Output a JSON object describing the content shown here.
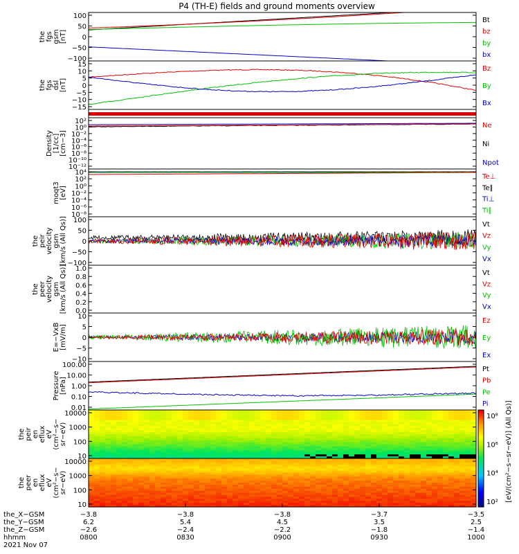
{
  "title": "P4 (TH-E) fields and ground moments overview",
  "colors": {
    "black": "#000000",
    "red": "#e00000",
    "green": "#00c000",
    "blue": "#0000c8"
  },
  "panels": [
    {
      "id": "fgs_gsm",
      "ylabel": [
        "the",
        "fgs",
        "gsm",
        "[nT]"
      ],
      "ticks": [
        "100",
        "50",
        "0",
        "−50",
        "−100"
      ],
      "ylim": [
        -100,
        100
      ],
      "legend": [
        {
          "t": "Bt",
          "c": "black"
        },
        {
          "t": "bz",
          "c": "red"
        },
        {
          "t": "by",
          "c": "green"
        },
        {
          "t": "bx",
          "c": "blue"
        }
      ]
    },
    {
      "id": "fgs_dsl",
      "ylabel": [
        "the",
        "fgs",
        "dsl",
        "[nT]"
      ],
      "ticks": [
        "15",
        "10",
        "5",
        "0",
        "−5",
        "−10",
        "−15"
      ],
      "ylim": [
        -15,
        15
      ],
      "legend": [
        {
          "t": "Bz",
          "c": "red"
        },
        {
          "t": "By",
          "c": "green"
        },
        {
          "t": "Bx",
          "c": "blue"
        }
      ]
    },
    {
      "id": "flag",
      "ylabel": [],
      "ticks": [],
      "legend": []
    },
    {
      "id": "density",
      "ylabel": [
        "Density",
        "[1/cc]",
        "[cm−3]"
      ],
      "ticks": [
        "10²",
        "10⁰",
        "10⁻²",
        "10⁻⁴",
        "10⁻⁶",
        "10⁻⁸",
        "10⁻¹⁰",
        "10⁻¹²"
      ],
      "legend": [
        {
          "t": "Ne",
          "c": "red"
        },
        {
          "t": "Ni",
          "c": "black"
        },
        {
          "t": "Npot",
          "c": "blue"
        }
      ]
    },
    {
      "id": "temp",
      "ylabel": [
        "moqt3",
        "[eV]"
      ],
      "ticks": [
        "10⁴",
        "10²",
        "10⁰",
        "10⁻²",
        "10⁻⁴",
        "10⁻⁶",
        "10⁻⁸"
      ],
      "legend": [
        {
          "t": "Te⊥",
          "c": "red"
        },
        {
          "t": "Te∥",
          "c": "black"
        },
        {
          "t": "Ti⊥",
          "c": "blue"
        },
        {
          "t": "Ti∥",
          "c": "green"
        }
      ]
    },
    {
      "id": "peir_vel",
      "ylabel": [
        "the",
        "peir",
        "velocity",
        "gsm",
        "[km/s (All Qs)]"
      ],
      "ticks": [
        "100",
        "50",
        "0",
        "−50",
        "−100"
      ],
      "ylim": [
        -100,
        100
      ],
      "legend": [
        {
          "t": "Vt",
          "c": "black"
        },
        {
          "t": "Vz",
          "c": "red"
        },
        {
          "t": "Vy",
          "c": "green"
        },
        {
          "t": "Vx",
          "c": "blue"
        }
      ]
    },
    {
      "id": "peer_vel",
      "ylabel": [
        "the",
        "peer",
        "velocity",
        "gsm",
        "[km/s (All Qs)]"
      ],
      "ticks": [
        "1.0",
        "0.8",
        "0.6",
        "0.4",
        "0.2",
        "0.0"
      ],
      "legend": [
        {
          "t": "Vt",
          "c": "black"
        },
        {
          "t": "Vz",
          "c": "red"
        },
        {
          "t": "Vy",
          "c": "green"
        },
        {
          "t": "Vx",
          "c": "blue"
        }
      ]
    },
    {
      "id": "efield",
      "ylabel": [
        "E=−VxB",
        "[mV/m]"
      ],
      "ticks": [
        "10",
        "5",
        "0",
        "−5",
        "−10"
      ],
      "ylim": [
        -10,
        10
      ],
      "legend": [
        {
          "t": "Ez",
          "c": "red"
        },
        {
          "t": "Ey",
          "c": "green"
        },
        {
          "t": "Ex",
          "c": "blue"
        }
      ]
    },
    {
      "id": "pressure",
      "ylabel": [
        "Pressure",
        "[nPa]"
      ],
      "ticks": [
        "100.00",
        "10.00",
        "1.00",
        "0.10",
        "0.01"
      ],
      "legend": [
        {
          "t": "Pt",
          "c": "black"
        },
        {
          "t": "Pb",
          "c": "red"
        },
        {
          "t": "Pe",
          "c": "green"
        },
        {
          "t": "Pi",
          "c": "blue"
        }
      ]
    },
    {
      "id": "peir_spec",
      "ylabel": [
        "the",
        "peir",
        "en",
        "eflux",
        "eV",
        "(cm²−s−",
        "sr−eV)"
      ],
      "ticks": [
        "10000",
        "1000",
        "100",
        "10"
      ],
      "legend": []
    },
    {
      "id": "peer_spec",
      "ylabel": [
        "the",
        "peer",
        "en",
        "eflux",
        "eV",
        "(cm²−s−",
        "sr−eV)"
      ],
      "ticks": [
        "10000",
        "1000",
        "100",
        "10"
      ],
      "legend": []
    }
  ],
  "colorbar": {
    "ticks": [
      "10⁸",
      "10⁶",
      "10⁴",
      "10²"
    ],
    "label": "[eV/(cm²−s−sr−eV)] (All Qs)]"
  },
  "xaxis": {
    "rows": [
      {
        "label": "the_X−GSM",
        "values": [
          "−3.8",
          "−3.8",
          "−3.8",
          "−3.7",
          "−3.5"
        ]
      },
      {
        "label": "the_Y−GSM",
        "values": [
          "6.2",
          "5.4",
          "4.5",
          "3.5",
          "2.5"
        ]
      },
      {
        "label": "the_Z−GSM",
        "values": [
          "−2.6",
          "−2.4",
          "−2.2",
          "−1.8",
          "−1.4"
        ]
      },
      {
        "label": "hhmm",
        "values": [
          "0800",
          "0830",
          "0900",
          "0930",
          "1000"
        ]
      }
    ],
    "date": "2021 Nov 07"
  },
  "chart_data": {
    "type": "line",
    "title": "P4 (TH-E) fields and ground moments overview",
    "x": [
      "0800",
      "0830",
      "0900",
      "0930",
      "1000"
    ],
    "series": [
      {
        "name": "Bt",
        "values": [
          55,
          75,
          95,
          118,
          140
        ]
      },
      {
        "name": "bz",
        "values": [
          35,
          45,
          62,
          85,
          110
        ]
      },
      {
        "name": "by",
        "values": [
          22,
          33,
          42,
          50,
          55
        ]
      },
      {
        "name": "bx",
        "values": [
          -42,
          -60,
          -78,
          -100,
          -118
        ]
      },
      {
        "name": "Bz",
        "values": [
          5,
          8,
          10,
          8,
          -1
        ]
      },
      {
        "name": "By",
        "values": [
          -12,
          -8,
          -2,
          0,
          0
        ]
      },
      {
        "name": "Bx",
        "values": [
          5,
          2,
          -2,
          -4,
          1
        ]
      },
      {
        "name": "Pt",
        "values": [
          2,
          4,
          7,
          14,
          40
        ]
      },
      {
        "name": "Pe",
        "values": [
          0.012,
          0.03,
          0.07,
          0.13,
          0.2
        ]
      },
      {
        "name": "Pi",
        "values": [
          0.3,
          0.25,
          0.2,
          0.18,
          0.2
        ]
      }
    ]
  }
}
